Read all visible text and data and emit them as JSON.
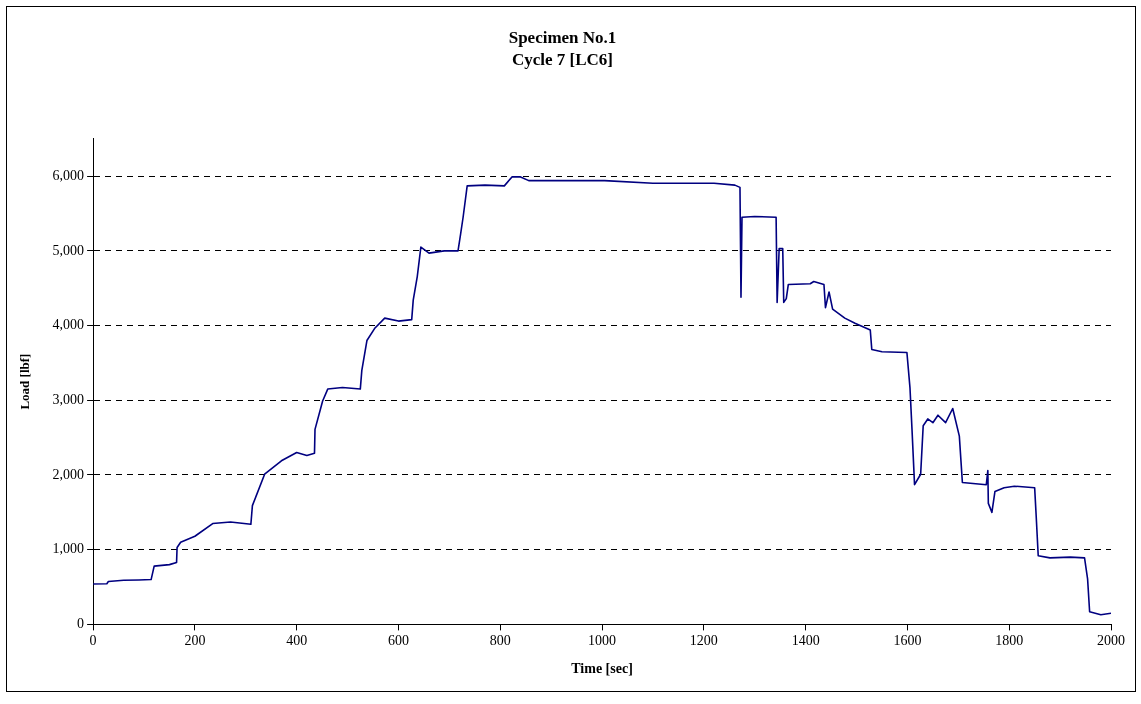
{
  "chart_data": {
    "type": "line",
    "title": "Specimen No.1",
    "subtitle": "Cycle 7 [LC6]",
    "xlabel": "Time [sec]",
    "ylabel": "Load [lbf]",
    "xlim": [
      0,
      2000
    ],
    "xticks": [
      0,
      200,
      400,
      600,
      800,
      1000,
      1200,
      1400,
      1600,
      1800,
      2000
    ],
    "ylim": [
      0,
      6500
    ],
    "yticks": [
      0,
      {
        "value": 1000,
        "label": "1,000"
      },
      {
        "value": 2000,
        "label": "2,000"
      },
      {
        "value": 3000,
        "label": "3,000"
      },
      {
        "value": 4000,
        "label": "4,000"
      },
      {
        "value": 5000,
        "label": "5,000"
      },
      {
        "value": 6000,
        "label": "6,000"
      }
    ],
    "grid": "y",
    "legend": false,
    "marker": "none",
    "line_style": "solid",
    "x": [
      0,
      27,
      30,
      60,
      90,
      114,
      120,
      150,
      164,
      165,
      172,
      200,
      235,
      270,
      310,
      313,
      337,
      370,
      400,
      420,
      435,
      436,
      451,
      461,
      490,
      525,
      528,
      538,
      553,
      573,
      600,
      626,
      629,
      637,
      644,
      660,
      690,
      717,
      722,
      727,
      735,
      770,
      808,
      823,
      840,
      856,
      1005,
      1100,
      1220,
      1261,
      1271,
      1273,
      1275,
      1300,
      1342,
      1344,
      1348,
      1355,
      1357,
      1362,
      1366,
      1409,
      1416,
      1436,
      1439,
      1446,
      1453,
      1477,
      1497,
      1527,
      1530,
      1550,
      1599,
      1605,
      1609,
      1614,
      1626,
      1631,
      1640,
      1650,
      1660,
      1675,
      1689,
      1702,
      1708,
      1755,
      1758,
      1759,
      1766,
      1772,
      1790,
      1810,
      1850,
      1853,
      1857,
      1880,
      1920,
      1948,
      1954,
      1958,
      1980,
      2000
    ],
    "series": [
      {
        "color": "#000080",
        "values": [
          540,
          545,
          575,
          590,
          595,
          600,
          780,
          800,
          830,
          1030,
          1100,
          1180,
          1350,
          1370,
          1340,
          1590,
          2010,
          2190,
          2300,
          2260,
          2290,
          2610,
          2990,
          3150,
          3170,
          3150,
          3400,
          3800,
          3960,
          4100,
          4060,
          4080,
          4340,
          4660,
          5050,
          4970,
          5000,
          5000,
          5220,
          5450,
          5870,
          5880,
          5870,
          5990,
          5990,
          5940,
          5940,
          5905,
          5905,
          5880,
          5850,
          4380,
          5450,
          5460,
          5450,
          4310,
          5030,
          5030,
          4310,
          4360,
          4550,
          4560,
          4590,
          4550,
          4240,
          4450,
          4220,
          4100,
          4030,
          3940,
          3680,
          3650,
          3640,
          3170,
          2610,
          1870,
          2010,
          2660,
          2750,
          2700,
          2800,
          2700,
          2890,
          2520,
          1900,
          1870,
          2060,
          1620,
          1500,
          1780,
          1830,
          1850,
          1830,
          1450,
          920,
          890,
          900,
          890,
          610,
          170,
          130,
          150
        ]
      }
    ]
  }
}
